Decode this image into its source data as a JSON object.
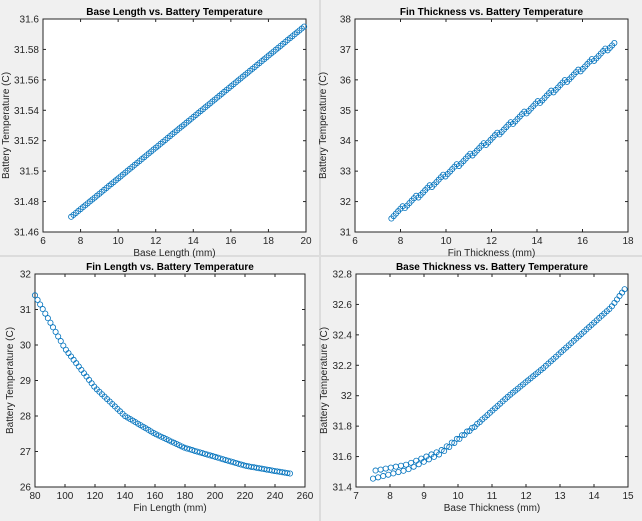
{
  "colors": {
    "marker": "#0072bd",
    "axes": "#262626",
    "figure_bg": "#f0f0f0",
    "plot_bg": "#ffffff"
  },
  "chart_data": [
    {
      "id": "base-length",
      "type": "scatter",
      "title": "Base Length vs. Battery Temperature",
      "xlabel": "Base Length (mm)",
      "ylabel": "Battery Temperature (C)",
      "xlim": [
        6,
        20
      ],
      "ylim": [
        31.46,
        31.6
      ],
      "xticks": [
        6,
        8,
        10,
        12,
        14,
        16,
        18,
        20
      ],
      "yticks": [
        31.46,
        31.48,
        31.5,
        31.52,
        31.54,
        31.56,
        31.58,
        31.6
      ],
      "grid": false,
      "series": [
        {
          "marker": "o",
          "x_range": [
            7.5,
            19.9
          ],
          "count": 100,
          "y_range": [
            31.47,
            31.595
          ],
          "shape": "linear"
        }
      ]
    },
    {
      "id": "fin-thickness",
      "type": "scatter",
      "title": "Fin Thickness vs. Battery Temperature",
      "xlabel": "Fin Thickness (mm)",
      "ylabel": "Battery Temperature (C)",
      "xlim": [
        6,
        18
      ],
      "ylim": [
        31,
        38
      ],
      "xticks": [
        6,
        8,
        10,
        12,
        14,
        16,
        18
      ],
      "yticks": [
        31,
        32,
        33,
        34,
        35,
        36,
        37,
        38
      ],
      "grid": false,
      "series": [
        {
          "marker": "o",
          "x_range": [
            7.6,
            17.4
          ],
          "count": 100,
          "y_range": [
            31.5,
            37.2
          ],
          "shape": "linear-stepped"
        }
      ]
    },
    {
      "id": "fin-length",
      "type": "scatter",
      "title": "Fin Length vs. Battery Temperature",
      "xlabel": "Fin Length (mm)",
      "ylabel": "Battery Temperature (C)",
      "xlim": [
        80,
        260
      ],
      "ylim": [
        26,
        32
      ],
      "xticks": [
        80,
        100,
        120,
        140,
        160,
        180,
        200,
        220,
        240,
        260
      ],
      "yticks": [
        26,
        27,
        28,
        29,
        30,
        31,
        32
      ],
      "grid": false,
      "series": [
        {
          "marker": "o",
          "x_range": [
            80,
            250
          ],
          "count": 100,
          "points": [
            [
              80,
              31.4
            ],
            [
              100,
              29.9
            ],
            [
              120,
              28.8
            ],
            [
              140,
              28.0
            ],
            [
              160,
              27.5
            ],
            [
              180,
              27.1
            ],
            [
              200,
              26.85
            ],
            [
              220,
              26.6
            ],
            [
              240,
              26.45
            ],
            [
              250,
              26.38
            ]
          ]
        }
      ]
    },
    {
      "id": "base-thickness",
      "type": "scatter",
      "title": "Base Thickness vs. Battery Temperature",
      "xlabel": "Base Thickness (mm)",
      "ylabel": "Battery Temperature (C)",
      "xlim": [
        7,
        15
      ],
      "ylim": [
        31.4,
        32.8
      ],
      "xticks": [
        7,
        8,
        9,
        10,
        11,
        12,
        13,
        14,
        15
      ],
      "yticks": [
        31.4,
        31.6,
        31.8,
        32,
        32.2,
        32.4,
        32.6,
        32.8
      ],
      "grid": false,
      "series": [
        {
          "marker": "o",
          "x_range": [
            7.5,
            14.9
          ],
          "count": 100,
          "points": [
            [
              7.5,
              31.48
            ],
            [
              8.5,
              31.53
            ],
            [
              9.5,
              31.63
            ],
            [
              10.5,
              31.8
            ],
            [
              11.5,
              32.0
            ],
            [
              12.5,
              32.18
            ],
            [
              13.5,
              32.38
            ],
            [
              14.5,
              32.58
            ],
            [
              14.9,
              32.7
            ]
          ],
          "jitter": "zigzag"
        }
      ]
    }
  ]
}
